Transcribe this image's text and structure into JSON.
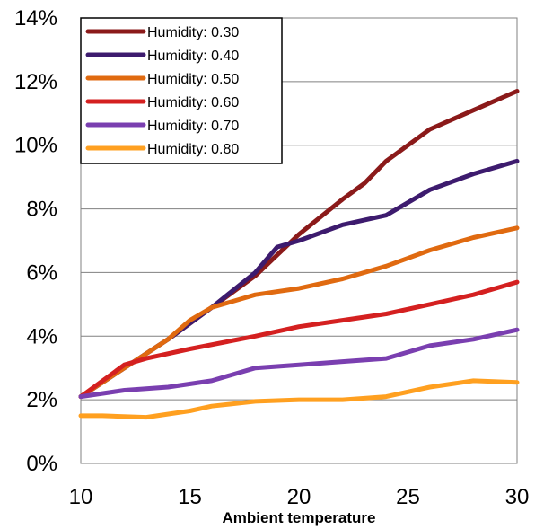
{
  "chart_data": {
    "type": "line",
    "xlabel": "Ambient temperature",
    "ylabel": "",
    "title": "",
    "x_ticks": [
      10,
      15,
      20,
      25,
      30
    ],
    "y_ticks": [
      0,
      2,
      4,
      6,
      8,
      10,
      12,
      14
    ],
    "y_tick_labels": [
      "0%",
      "2%",
      "4%",
      "6%",
      "8%",
      "10%",
      "12%",
      "14%"
    ],
    "xlim": [
      10,
      30
    ],
    "ylim": [
      0,
      14
    ],
    "grid": "horizontal",
    "legend_position": "top-left",
    "series": [
      {
        "name": "Humidity: 0.30",
        "color": "#8b1a1a",
        "points": [
          [
            10,
            2.1
          ],
          [
            12,
            3.0
          ],
          [
            14,
            3.9
          ],
          [
            16,
            4.9
          ],
          [
            18,
            5.9
          ],
          [
            20,
            7.2
          ],
          [
            22,
            8.3
          ],
          [
            23,
            8.8
          ],
          [
            24,
            9.5
          ],
          [
            26,
            10.5
          ],
          [
            28,
            11.1
          ],
          [
            30,
            11.7
          ]
        ]
      },
      {
        "name": "Humidity: 0.40",
        "color": "#3d1b6e",
        "points": [
          [
            10,
            2.1
          ],
          [
            12,
            3.0
          ],
          [
            14,
            3.9
          ],
          [
            16,
            4.9
          ],
          [
            18,
            6.0
          ],
          [
            19,
            6.8
          ],
          [
            20,
            7.0
          ],
          [
            22,
            7.5
          ],
          [
            24,
            7.8
          ],
          [
            26,
            8.6
          ],
          [
            28,
            9.1
          ],
          [
            30,
            9.5
          ]
        ]
      },
      {
        "name": "Humidity: 0.50",
        "color": "#e06a10",
        "points": [
          [
            10,
            2.1
          ],
          [
            12,
            3.0
          ],
          [
            14,
            3.9
          ],
          [
            15,
            4.5
          ],
          [
            16,
            4.9
          ],
          [
            18,
            5.3
          ],
          [
            20,
            5.5
          ],
          [
            22,
            5.8
          ],
          [
            24,
            6.2
          ],
          [
            26,
            6.7
          ],
          [
            28,
            7.1
          ],
          [
            30,
            7.4
          ]
        ]
      },
      {
        "name": "Humidity: 0.60",
        "color": "#d42020",
        "points": [
          [
            10,
            2.1
          ],
          [
            12,
            3.1
          ],
          [
            13,
            3.3
          ],
          [
            15,
            3.6
          ],
          [
            18,
            4.0
          ],
          [
            20,
            4.3
          ],
          [
            22,
            4.5
          ],
          [
            24,
            4.7
          ],
          [
            26,
            5.0
          ],
          [
            28,
            5.3
          ],
          [
            30,
            5.7
          ]
        ]
      },
      {
        "name": "Humidity: 0.70",
        "color": "#7a3fb0",
        "points": [
          [
            10,
            2.1
          ],
          [
            12,
            2.3
          ],
          [
            14,
            2.4
          ],
          [
            16,
            2.6
          ],
          [
            18,
            3.0
          ],
          [
            20,
            3.1
          ],
          [
            22,
            3.2
          ],
          [
            24,
            3.3
          ],
          [
            26,
            3.7
          ],
          [
            28,
            3.9
          ],
          [
            30,
            4.2
          ]
        ]
      },
      {
        "name": "Humidity: 0.80",
        "color": "#ffa020",
        "points": [
          [
            10,
            1.5
          ],
          [
            11,
            1.5
          ],
          [
            13,
            1.45
          ],
          [
            15,
            1.65
          ],
          [
            16,
            1.8
          ],
          [
            18,
            1.95
          ],
          [
            20,
            2.0
          ],
          [
            22,
            2.0
          ],
          [
            24,
            2.1
          ],
          [
            26,
            2.4
          ],
          [
            28,
            2.6
          ],
          [
            30,
            2.55
          ]
        ]
      }
    ]
  }
}
